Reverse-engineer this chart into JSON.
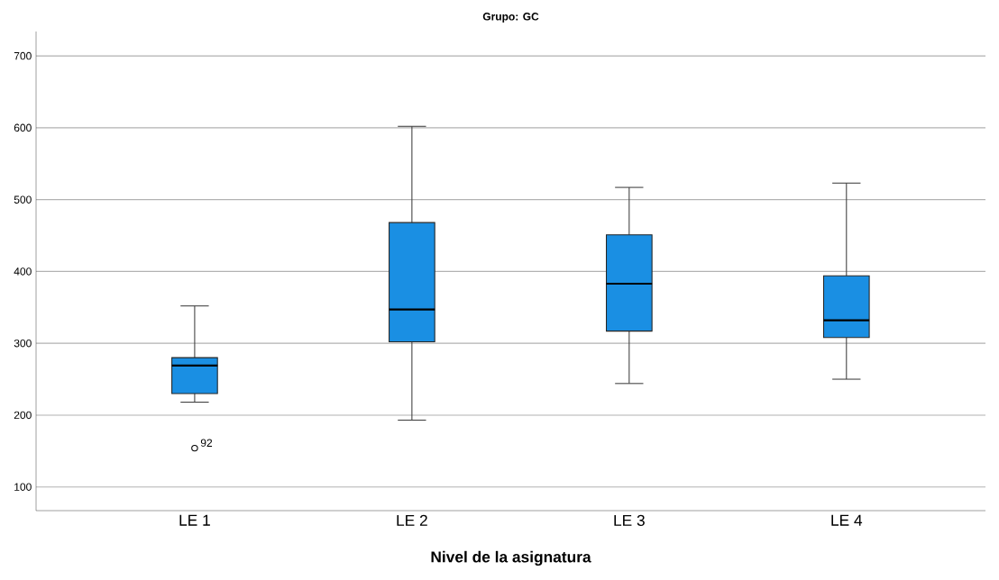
{
  "chart_data": {
    "type": "box",
    "title": "Grupo: GC",
    "xlabel": "Nivel de la asignatura",
    "categories": [
      "LE 1",
      "LE 2",
      "LE 3",
      "LE 4"
    ],
    "boxes": [
      {
        "low": 218,
        "q1": 230,
        "median": 269,
        "q3": 280,
        "high": 352,
        "outliers": [
          154
        ]
      },
      {
        "low": 193,
        "q1": 302,
        "median": 347,
        "q3": 468,
        "high": 602
      },
      {
        "low": 244,
        "q1": 317,
        "median": 383,
        "q3": 451,
        "high": 517
      },
      {
        "low": 250,
        "q1": 308,
        "median": 332,
        "q3": 394,
        "high": 523
      }
    ],
    "color": "#1a8fe3",
    "ylim": [
      67,
      734
    ],
    "yticks": [
      100,
      200,
      300,
      400,
      500,
      600,
      700
    ],
    "grid": "y",
    "annotations": [
      "92"
    ]
  }
}
